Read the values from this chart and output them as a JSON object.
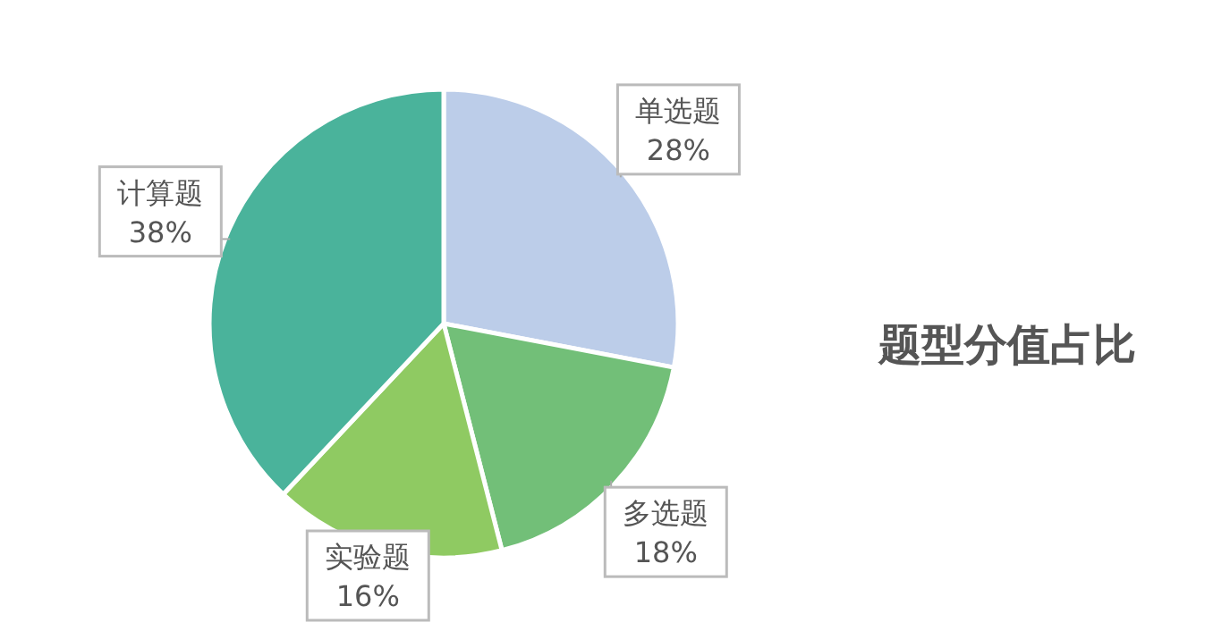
{
  "chart_data": {
    "type": "pie",
    "title": "题型分值占比",
    "categories": [
      "单选题",
      "多选题",
      "实验题",
      "计算题"
    ],
    "values": [
      28,
      18,
      16,
      38
    ],
    "colors": [
      "#bccde9",
      "#72bf78",
      "#8fca62",
      "#4ab39b"
    ],
    "value_labels": [
      "28%",
      "18%",
      "16%",
      "38%"
    ]
  }
}
